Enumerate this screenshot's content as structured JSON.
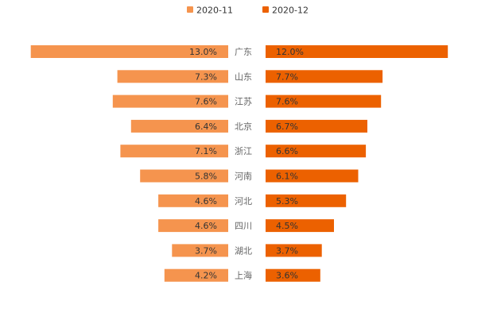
{
  "chart_data": {
    "type": "bar",
    "layout": "butterfly",
    "categories": [
      "广东",
      "山东",
      "江苏",
      "北京",
      "浙江",
      "河南",
      "河北",
      "四川",
      "湖北",
      "上海"
    ],
    "series": [
      {
        "name": "2020-11",
        "values": [
          13.0,
          7.3,
          7.6,
          6.4,
          7.1,
          5.8,
          4.6,
          4.6,
          3.7,
          4.2
        ],
        "color": "#f5944e",
        "side": "left"
      },
      {
        "name": "2020-12",
        "values": [
          12.0,
          7.7,
          7.6,
          6.7,
          6.6,
          6.1,
          5.3,
          4.5,
          3.7,
          3.6
        ],
        "color": "#ec6100",
        "side": "right"
      }
    ],
    "value_suffix": "%",
    "legend_position": "top-center"
  }
}
